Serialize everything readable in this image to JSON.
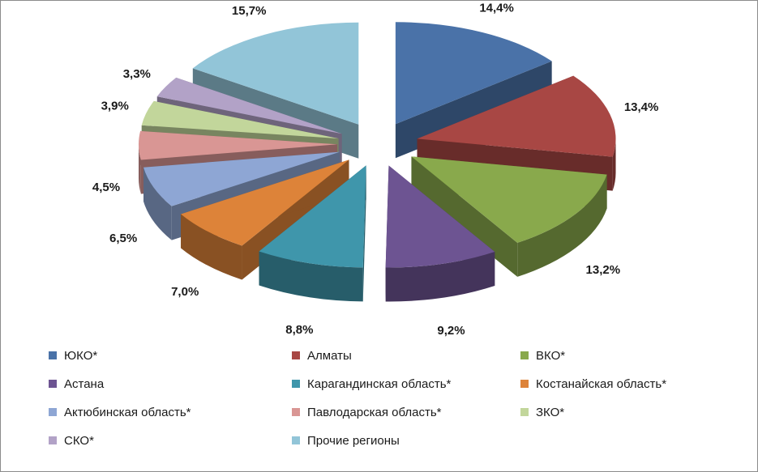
{
  "chart_data": {
    "type": "pie",
    "style": "exploded-3d",
    "categories": [
      "ЮКО*",
      "Алматы",
      "ВКО*",
      "Астана",
      "Карагандинская область*",
      "Костанайская область*",
      "Актюбинская область*",
      "Павлодарская область*",
      "ЗКО*",
      "СКО*",
      "Прочие регионы"
    ],
    "values": [
      14.4,
      13.4,
      13.2,
      9.2,
      8.8,
      7.0,
      6.5,
      4.5,
      3.9,
      3.3,
      15.7
    ],
    "labels": [
      "14,4%",
      "13,4%",
      "13,2%",
      "9,2%",
      "8,8%",
      "7,0%",
      "6,5%",
      "4,5%",
      "3,9%",
      "3,3%",
      "15,7%"
    ],
    "colors": [
      "#4a72a8",
      "#a84744",
      "#89a94c",
      "#6d5492",
      "#3f96ab",
      "#dd8339",
      "#8ea6d4",
      "#d99694",
      "#c2d69b",
      "#b2a2c7",
      "#92c5d8"
    ],
    "legend_position": "bottom"
  }
}
